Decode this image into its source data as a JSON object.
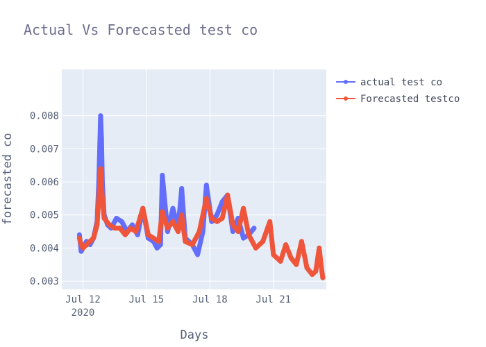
{
  "chart_data": {
    "type": "line",
    "title": "Actual Vs Forecasted test co",
    "xlabel": "Days",
    "ylabel": "forecasted co",
    "xlim": [
      "2020-07-11",
      "2020-07-23 12:00"
    ],
    "ylim": [
      0.00275,
      0.0094
    ],
    "x_ticks": [
      {
        "value": "2020-07-12",
        "label": "Jul 12",
        "sublabel": "2020"
      },
      {
        "value": "2020-07-15",
        "label": "Jul 15",
        "sublabel": ""
      },
      {
        "value": "2020-07-18",
        "label": "Jul 18",
        "sublabel": ""
      },
      {
        "value": "2020-07-21",
        "label": "Jul 21",
        "sublabel": ""
      }
    ],
    "y_ticks": [
      0.003,
      0.004,
      0.005,
      0.006,
      0.007,
      0.008
    ],
    "y_tick_labels": [
      "0.003",
      "0.004",
      "0.005",
      "0.006",
      "0.007",
      "0.008"
    ],
    "grid": true,
    "legend_position": "top-right",
    "colors": {
      "actual": "#636efa",
      "forecast": "#ef553b",
      "plot_bg": "#e5ecf6"
    },
    "series": [
      {
        "name": "actual test co",
        "color": "#636efa",
        "x": [
          "2020-07-11 20:00",
          "2020-07-11 22:00",
          "2020-07-12 00:00",
          "2020-07-12 04:00",
          "2020-07-12 08:00",
          "2020-07-12 12:00",
          "2020-07-12 16:00",
          "2020-07-12 18:00",
          "2020-07-12 20:00",
          "2020-07-12 21:00",
          "2020-07-12 22:00",
          "2020-07-13 00:00",
          "2020-07-13 04:00",
          "2020-07-13 08:00",
          "2020-07-13 14:00",
          "2020-07-13 20:00",
          "2020-07-14 02:00",
          "2020-07-14 08:00",
          "2020-07-14 14:00",
          "2020-07-14 20:00",
          "2020-07-15 02:00",
          "2020-07-15 08:00",
          "2020-07-15 12:00",
          "2020-07-15 16:00",
          "2020-07-15 18:00",
          "2020-07-16 00:00",
          "2020-07-16 06:00",
          "2020-07-16 12:00",
          "2020-07-16 16:00",
          "2020-07-16 20:00",
          "2020-07-17 04:00",
          "2020-07-17 10:00",
          "2020-07-17 16:00",
          "2020-07-17 20:00",
          "2020-07-18 02:00",
          "2020-07-18 08:00",
          "2020-07-18 14:00",
          "2020-07-18 20:00",
          "2020-07-19 02:00",
          "2020-07-19 08:00",
          "2020-07-19 14:00",
          "2020-07-19 20:00",
          "2020-07-20 02:00"
        ],
        "y": [
          0.0044,
          0.0039,
          0.004,
          0.0042,
          0.0041,
          0.0043,
          0.0048,
          0.006,
          0.008,
          0.0073,
          0.006,
          0.005,
          0.0047,
          0.0046,
          0.0049,
          0.0048,
          0.0045,
          0.0047,
          0.0044,
          0.0052,
          0.0043,
          0.0042,
          0.004,
          0.0041,
          0.0062,
          0.0045,
          0.0052,
          0.0046,
          0.0058,
          0.0043,
          0.0041,
          0.0038,
          0.0045,
          0.0059,
          0.0048,
          0.005,
          0.0054,
          0.0056,
          0.0045,
          0.0049,
          0.0043,
          0.0044,
          0.0046
        ]
      },
      {
        "name": "Forecasted testco",
        "color": "#ef553b",
        "x": [
          "2020-07-11 20:00",
          "2020-07-11 22:00",
          "2020-07-12 00:00",
          "2020-07-12 04:00",
          "2020-07-12 08:00",
          "2020-07-12 12:00",
          "2020-07-12 16:00",
          "2020-07-12 18:00",
          "2020-07-12 20:00",
          "2020-07-12 22:00",
          "2020-07-13 00:00",
          "2020-07-13 06:00",
          "2020-07-13 12:00",
          "2020-07-13 18:00",
          "2020-07-14 00:00",
          "2020-07-14 06:00",
          "2020-07-14 12:00",
          "2020-07-14 20:00",
          "2020-07-15 02:00",
          "2020-07-15 08:00",
          "2020-07-15 14:00",
          "2020-07-15 18:00",
          "2020-07-16 00:00",
          "2020-07-16 06:00",
          "2020-07-16 12:00",
          "2020-07-16 16:00",
          "2020-07-16 20:00",
          "2020-07-17 04:00",
          "2020-07-17 12:00",
          "2020-07-17 20:00",
          "2020-07-18 02:00",
          "2020-07-18 08:00",
          "2020-07-18 14:00",
          "2020-07-18 20:00",
          "2020-07-19 02:00",
          "2020-07-19 08:00",
          "2020-07-19 14:00",
          "2020-07-19 20:00",
          "2020-07-20 04:00",
          "2020-07-20 12:00",
          "2020-07-20 20:00",
          "2020-07-21 00:00",
          "2020-07-21 08:00",
          "2020-07-21 14:00",
          "2020-07-21 20:00",
          "2020-07-22 02:00",
          "2020-07-22 08:00",
          "2020-07-22 14:00",
          "2020-07-22 20:00",
          "2020-07-23 00:00",
          "2020-07-23 04:00",
          "2020-07-23 06:00",
          "2020-07-23 08:00"
        ],
        "y": [
          0.0043,
          0.0041,
          0.004,
          0.0041,
          0.0042,
          0.0043,
          0.0047,
          0.0055,
          0.0064,
          0.0055,
          0.0049,
          0.0047,
          0.0046,
          0.0046,
          0.0044,
          0.0046,
          0.0045,
          0.0052,
          0.0044,
          0.0043,
          0.0042,
          0.0051,
          0.0046,
          0.0048,
          0.0045,
          0.005,
          0.0042,
          0.0041,
          0.0045,
          0.0055,
          0.0049,
          0.0048,
          0.0049,
          0.0056,
          0.0047,
          0.0045,
          0.0052,
          0.0044,
          0.004,
          0.0042,
          0.0048,
          0.0038,
          0.0036,
          0.0041,
          0.0037,
          0.0035,
          0.0042,
          0.0034,
          0.0032,
          0.0033,
          0.004,
          0.0035,
          0.0031
        ]
      }
    ]
  }
}
